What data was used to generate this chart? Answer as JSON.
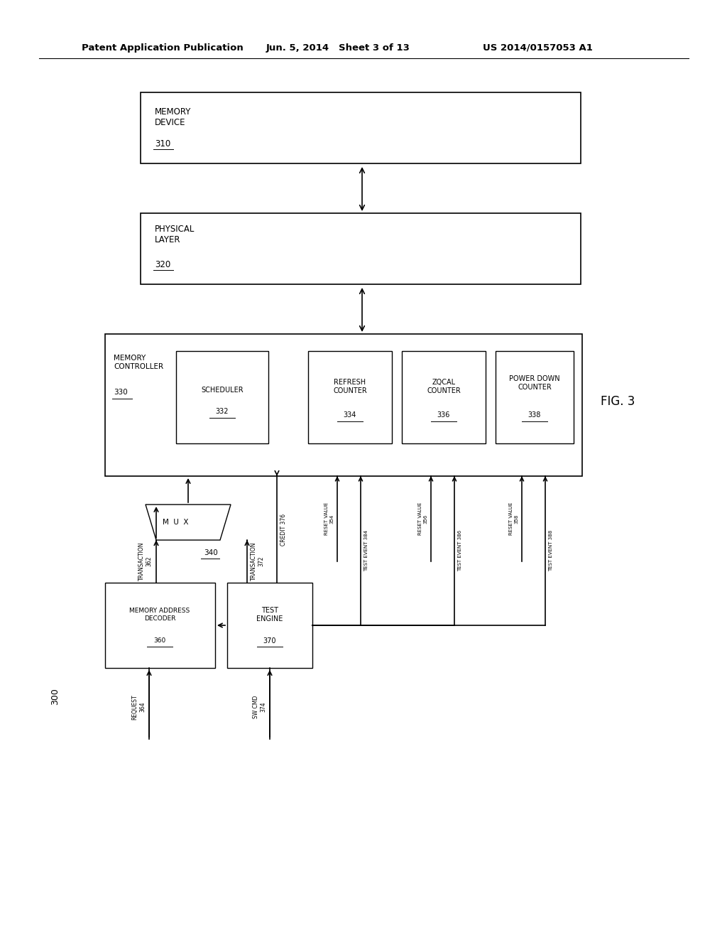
{
  "bg_color": "#ffffff",
  "header_left": "Patent Application Publication",
  "header_mid": "Jun. 5, 2014   Sheet 3 of 13",
  "header_right": "US 2014/0157053 A1",
  "fig_label": "FIG. 3",
  "system_label": "300"
}
